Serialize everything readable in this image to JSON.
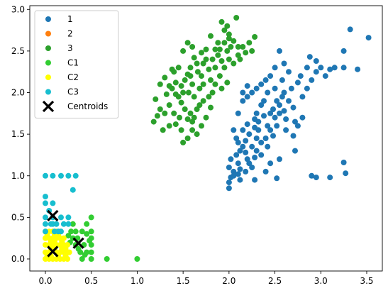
{
  "chart_data": {
    "type": "scatter",
    "xlim": [
      -0.17,
      3.67
    ],
    "ylim": [
      -0.145,
      3.045
    ],
    "x_ticks": [
      0.0,
      0.5,
      1.0,
      1.5,
      2.0,
      2.5,
      3.0,
      3.5
    ],
    "x_tick_labels": [
      "0.0",
      "0.5",
      "1.0",
      "1.5",
      "2.0",
      "2.5",
      "3.0",
      "3.5"
    ],
    "y_ticks": [
      0.0,
      0.5,
      1.0,
      1.5,
      2.0,
      2.5,
      3.0
    ],
    "y_tick_labels": [
      "0.0",
      "0.5",
      "1.0",
      "1.5",
      "2.0",
      "2.5",
      "3.0"
    ],
    "grid": false,
    "legend_position": "top-left",
    "series": [
      {
        "name": "1",
        "color": "#1f77b4",
        "marker": "circle",
        "points": [
          [
            2.0,
            0.85
          ],
          [
            2.0,
            0.92
          ],
          [
            2.02,
            0.98
          ],
          [
            2.05,
            1.05
          ],
          [
            2.0,
            1.1
          ],
          [
            2.02,
            1.2
          ],
          [
            2.08,
            1.25
          ],
          [
            2.1,
            1.15
          ],
          [
            2.05,
            1.0
          ],
          [
            2.12,
            0.95
          ],
          [
            2.15,
            1.35
          ],
          [
            2.2,
            1.2
          ],
          [
            2.25,
            1.1
          ],
          [
            2.18,
            1.42
          ],
          [
            2.22,
            1.5
          ],
          [
            2.28,
            1.58
          ],
          [
            2.3,
            1.3
          ],
          [
            2.35,
            1.4
          ],
          [
            2.4,
            1.45
          ],
          [
            2.32,
            1.65
          ],
          [
            2.38,
            1.72
          ],
          [
            2.42,
            1.6
          ],
          [
            2.45,
            1.55
          ],
          [
            2.48,
            1.8
          ],
          [
            2.5,
            1.7
          ],
          [
            2.52,
            1.9
          ],
          [
            2.55,
            1.85
          ],
          [
            2.58,
            1.95
          ],
          [
            2.6,
            2.0
          ],
          [
            2.55,
            1.75
          ],
          [
            2.62,
            1.68
          ],
          [
            2.65,
            1.9
          ],
          [
            2.7,
            1.82
          ],
          [
            2.68,
            2.05
          ],
          [
            2.72,
            1.65
          ],
          [
            2.75,
            2.12
          ],
          [
            2.78,
            2.2
          ],
          [
            2.8,
            1.95
          ],
          [
            2.85,
            2.05
          ],
          [
            2.9,
            2.15
          ],
          [
            2.95,
            2.25
          ],
          [
            3.0,
            2.3
          ],
          [
            3.05,
            2.2
          ],
          [
            3.1,
            2.28
          ],
          [
            3.15,
            2.3
          ],
          [
            3.25,
            2.3
          ],
          [
            3.4,
            2.28
          ],
          [
            3.25,
            2.5
          ],
          [
            3.32,
            2.76
          ],
          [
            3.52,
            2.66
          ],
          [
            2.88,
            2.43
          ],
          [
            2.95,
            2.38
          ],
          [
            2.85,
            2.3
          ],
          [
            2.6,
            2.35
          ],
          [
            2.55,
            2.5
          ],
          [
            2.5,
            2.3
          ],
          [
            2.45,
            2.2
          ],
          [
            2.4,
            2.15
          ],
          [
            2.35,
            2.1
          ],
          [
            2.3,
            2.05
          ],
          [
            2.25,
            2.0
          ],
          [
            2.2,
            1.95
          ],
          [
            2.15,
            1.9
          ],
          [
            2.1,
            1.75
          ],
          [
            2.05,
            1.55
          ],
          [
            2.08,
            1.45
          ],
          [
            2.12,
            1.3
          ],
          [
            2.18,
            1.28
          ],
          [
            2.25,
            1.35
          ],
          [
            2.28,
            1.22
          ],
          [
            2.35,
            1.25
          ],
          [
            2.42,
            1.35
          ],
          [
            2.48,
            1.48
          ],
          [
            2.52,
            1.6
          ],
          [
            2.62,
            1.55
          ],
          [
            2.7,
            1.48
          ],
          [
            2.72,
            1.3
          ],
          [
            2.55,
            1.2
          ],
          [
            2.45,
            1.15
          ],
          [
            2.4,
            1.05
          ],
          [
            2.3,
            1.45
          ],
          [
            2.22,
            1.15
          ],
          [
            2.18,
            1.05
          ],
          [
            2.12,
            1.08
          ],
          [
            2.1,
            1.02
          ],
          [
            2.38,
            1.9
          ],
          [
            2.42,
            2.0
          ],
          [
            2.5,
            2.05
          ],
          [
            2.58,
            2.15
          ],
          [
            2.65,
            2.25
          ],
          [
            2.15,
            2.0
          ],
          [
            2.2,
            2.08
          ],
          [
            2.52,
            0.97
          ],
          [
            2.28,
            0.95
          ],
          [
            2.9,
            1.0
          ],
          [
            2.95,
            0.98
          ],
          [
            3.1,
            0.98
          ],
          [
            3.27,
            1.03
          ],
          [
            3.25,
            1.16
          ],
          [
            2.8,
            1.7
          ],
          [
            2.75,
            1.6
          ],
          [
            2.45,
            1.75
          ],
          [
            2.35,
            1.85
          ],
          [
            2.3,
            1.75
          ],
          [
            2.28,
            1.68
          ],
          [
            2.2,
            1.62
          ],
          [
            2.15,
            1.55
          ],
          [
            2.1,
            1.4
          ],
          [
            2.32,
            1.55
          ],
          [
            2.6,
            1.78
          ]
        ]
      },
      {
        "name": "2",
        "color": "#ff7f0e",
        "marker": "circle",
        "points": []
      },
      {
        "name": "3",
        "color": "#2ca02c",
        "marker": "circle",
        "points": [
          [
            1.18,
            1.65
          ],
          [
            1.22,
            1.72
          ],
          [
            1.25,
            1.8
          ],
          [
            1.2,
            1.92
          ],
          [
            1.3,
            1.75
          ],
          [
            1.35,
            1.85
          ],
          [
            1.32,
            1.98
          ],
          [
            1.38,
            2.05
          ],
          [
            1.42,
            2.12
          ],
          [
            1.4,
            2.25
          ],
          [
            1.45,
            1.95
          ],
          [
            1.48,
            1.88
          ],
          [
            1.5,
            2.0
          ],
          [
            1.52,
            2.15
          ],
          [
            1.55,
            2.22
          ],
          [
            1.58,
            2.3
          ],
          [
            1.6,
            2.1
          ],
          [
            1.62,
            1.95
          ],
          [
            1.65,
            1.8
          ],
          [
            1.68,
            2.05
          ],
          [
            1.7,
            2.2
          ],
          [
            1.72,
            2.35
          ],
          [
            1.75,
            2.4
          ],
          [
            1.78,
            2.28
          ],
          [
            1.8,
            2.15
          ],
          [
            1.82,
            2.0
          ],
          [
            1.85,
            2.3
          ],
          [
            1.88,
            2.45
          ],
          [
            1.9,
            2.52
          ],
          [
            1.92,
            2.38
          ],
          [
            1.95,
            2.6
          ],
          [
            1.98,
            2.5
          ],
          [
            2.0,
            2.7
          ],
          [
            2.02,
            2.55
          ],
          [
            2.05,
            2.62
          ],
          [
            2.1,
            2.45
          ],
          [
            2.15,
            2.55
          ],
          [
            2.18,
            2.48
          ],
          [
            2.22,
            2.6
          ],
          [
            2.25,
            2.5
          ],
          [
            2.28,
            2.67
          ],
          [
            1.98,
            2.8
          ],
          [
            2.08,
            2.9
          ],
          [
            1.95,
            2.75
          ],
          [
            1.6,
            2.55
          ],
          [
            1.55,
            2.6
          ],
          [
            1.45,
            2.3
          ],
          [
            1.5,
            1.4
          ],
          [
            1.55,
            1.45
          ],
          [
            1.6,
            1.55
          ],
          [
            1.65,
            1.5
          ],
          [
            1.48,
            1.55
          ],
          [
            1.42,
            1.62
          ],
          [
            1.7,
            1.6
          ],
          [
            1.75,
            1.7
          ],
          [
            1.58,
            1.75
          ],
          [
            1.52,
            1.8
          ],
          [
            1.68,
            1.85
          ],
          [
            1.62,
            1.7
          ],
          [
            1.4,
            1.75
          ],
          [
            1.35,
            1.6
          ],
          [
            1.28,
            1.55
          ],
          [
            1.72,
            1.9
          ],
          [
            1.78,
            1.95
          ],
          [
            1.85,
            2.1
          ],
          [
            1.9,
            2.2
          ],
          [
            1.95,
            2.3
          ],
          [
            2.0,
            2.4
          ],
          [
            2.05,
            2.35
          ],
          [
            1.92,
            2.05
          ],
          [
            1.82,
            2.4
          ],
          [
            1.75,
            2.52
          ],
          [
            1.88,
            2.6
          ],
          [
            1.8,
            2.68
          ],
          [
            1.7,
            2.48
          ],
          [
            1.65,
            2.35
          ],
          [
            1.58,
            2.2
          ],
          [
            1.48,
            2.08
          ],
          [
            1.42,
            1.98
          ],
          [
            1.35,
            2.08
          ],
          [
            1.3,
            2.18
          ],
          [
            1.25,
            2.1
          ],
          [
            1.38,
            2.28
          ],
          [
            1.5,
            2.5
          ],
          [
            1.92,
            2.85
          ],
          [
            2.0,
            2.65
          ],
          [
            2.12,
            2.4
          ],
          [
            1.98,
            2.12
          ],
          [
            1.62,
            2.42
          ],
          [
            1.55,
            1.68
          ],
          [
            1.6,
            1.65
          ],
          [
            1.8,
            1.82
          ],
          [
            2.1,
            2.55
          ],
          [
            1.85,
            2.52
          ],
          [
            1.72,
            2.1
          ],
          [
            1.66,
            2.25
          ],
          [
            1.56,
            2.0
          ],
          [
            1.46,
            1.7
          ]
        ]
      },
      {
        "name": "C1",
        "color": "#32cd32",
        "marker": "circle",
        "points": [
          [
            0.5,
            0.5
          ],
          [
            0.5,
            0.33
          ],
          [
            0.5,
            0.25
          ],
          [
            0.5,
            0.17
          ],
          [
            0.5,
            0.08
          ],
          [
            0.5,
            0.0
          ],
          [
            0.67,
            0.0
          ],
          [
            1.0,
            0.0
          ],
          [
            0.45,
            0.42
          ],
          [
            0.4,
            0.33
          ],
          [
            0.33,
            0.33
          ],
          [
            0.3,
            0.25
          ],
          [
            0.42,
            0.17
          ],
          [
            0.38,
            0.08
          ],
          [
            0.28,
            0.33
          ],
          [
            0.25,
            0.28
          ],
          [
            0.35,
            0.25
          ],
          [
            0.45,
            0.3
          ],
          [
            0.4,
            0.0
          ],
          [
            0.45,
            0.08
          ],
          [
            0.33,
            0.17
          ],
          [
            0.3,
            0.42
          ],
          [
            0.48,
            0.22
          ],
          [
            0.36,
            0.12
          ],
          [
            0.43,
            0.05
          ],
          [
            0.27,
            0.2
          ]
        ]
      },
      {
        "name": "C2",
        "color": "#ffff00",
        "marker": "circle",
        "points": [
          [
            0.0,
            0.0
          ],
          [
            0.0,
            0.08
          ],
          [
            0.0,
            0.17
          ],
          [
            0.0,
            0.25
          ],
          [
            0.0,
            0.33
          ],
          [
            0.04,
            0.0
          ],
          [
            0.04,
            0.08
          ],
          [
            0.04,
            0.17
          ],
          [
            0.04,
            0.25
          ],
          [
            0.04,
            0.33
          ],
          [
            0.08,
            0.0
          ],
          [
            0.08,
            0.17
          ],
          [
            0.08,
            0.25
          ],
          [
            0.08,
            0.33
          ],
          [
            0.12,
            0.0
          ],
          [
            0.12,
            0.08
          ],
          [
            0.12,
            0.17
          ],
          [
            0.12,
            0.25
          ],
          [
            0.12,
            0.33
          ],
          [
            0.16,
            0.0
          ],
          [
            0.16,
            0.08
          ],
          [
            0.16,
            0.17
          ],
          [
            0.16,
            0.25
          ],
          [
            0.16,
            0.33
          ],
          [
            0.2,
            0.0
          ],
          [
            0.2,
            0.08
          ],
          [
            0.2,
            0.17
          ],
          [
            0.2,
            0.25
          ],
          [
            0.24,
            0.0
          ],
          [
            0.24,
            0.08
          ],
          [
            0.24,
            0.17
          ],
          [
            0.02,
            0.04
          ],
          [
            0.06,
            0.12
          ],
          [
            0.1,
            0.21
          ],
          [
            0.14,
            0.04
          ],
          [
            0.18,
            0.12
          ],
          [
            0.22,
            0.04
          ],
          [
            0.02,
            0.29
          ],
          [
            0.06,
            0.21
          ],
          [
            0.1,
            0.12
          ],
          [
            0.14,
            0.29
          ],
          [
            0.18,
            0.21
          ],
          [
            0.22,
            0.12
          ],
          [
            0.26,
            0.08
          ],
          [
            0.06,
            0.04
          ],
          [
            0.1,
            0.29
          ]
        ]
      },
      {
        "name": "C3",
        "color": "#17becf",
        "marker": "circle",
        "points": [
          [
            0.0,
            1.0
          ],
          [
            0.0,
            0.75
          ],
          [
            0.0,
            0.67
          ],
          [
            0.0,
            0.5
          ],
          [
            0.0,
            0.42
          ],
          [
            0.0,
            0.33
          ],
          [
            0.08,
            1.0
          ],
          [
            0.08,
            0.67
          ],
          [
            0.08,
            0.5
          ],
          [
            0.08,
            0.42
          ],
          [
            0.17,
            1.0
          ],
          [
            0.25,
            1.0
          ],
          [
            0.33,
            1.0
          ],
          [
            0.17,
            0.5
          ],
          [
            0.25,
            0.5
          ],
          [
            0.17,
            0.33
          ],
          [
            0.12,
            0.42
          ],
          [
            0.3,
            0.83
          ],
          [
            0.04,
            0.58
          ],
          [
            0.1,
            0.33
          ],
          [
            0.2,
            0.42
          ],
          [
            0.14,
            0.33
          ],
          [
            0.25,
            0.42
          ],
          [
            0.06,
            0.42
          ]
        ]
      }
    ],
    "centroids": {
      "name": "Centroids",
      "color": "#000000",
      "marker": "x",
      "points": [
        [
          0.08,
          0.52
        ],
        [
          0.08,
          0.09
        ],
        [
          0.36,
          0.19
        ]
      ]
    }
  }
}
